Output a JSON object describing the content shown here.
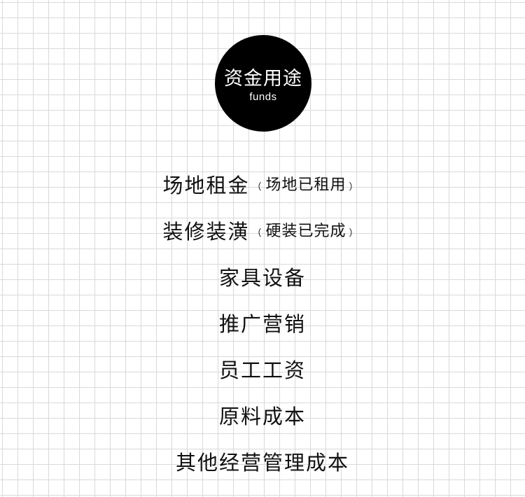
{
  "badge": {
    "title": "资金用途",
    "subtitle": "funds"
  },
  "items": [
    {
      "text": "场地租金",
      "note_open": "（",
      "note": "场地已租用",
      "note_close": "）"
    },
    {
      "text": "装修装潢",
      "note_open": "（",
      "note": "硬装已完成",
      "note_close": "）"
    },
    {
      "text": "家具设备"
    },
    {
      "text": "推广营销"
    },
    {
      "text": "员工工资"
    },
    {
      "text": "原料成本"
    },
    {
      "text": "其他经营管理成本"
    }
  ],
  "colors": {
    "background": "#ffffff",
    "grid": "#d9d9d9",
    "badge": "#000000",
    "text": "#111111"
  }
}
